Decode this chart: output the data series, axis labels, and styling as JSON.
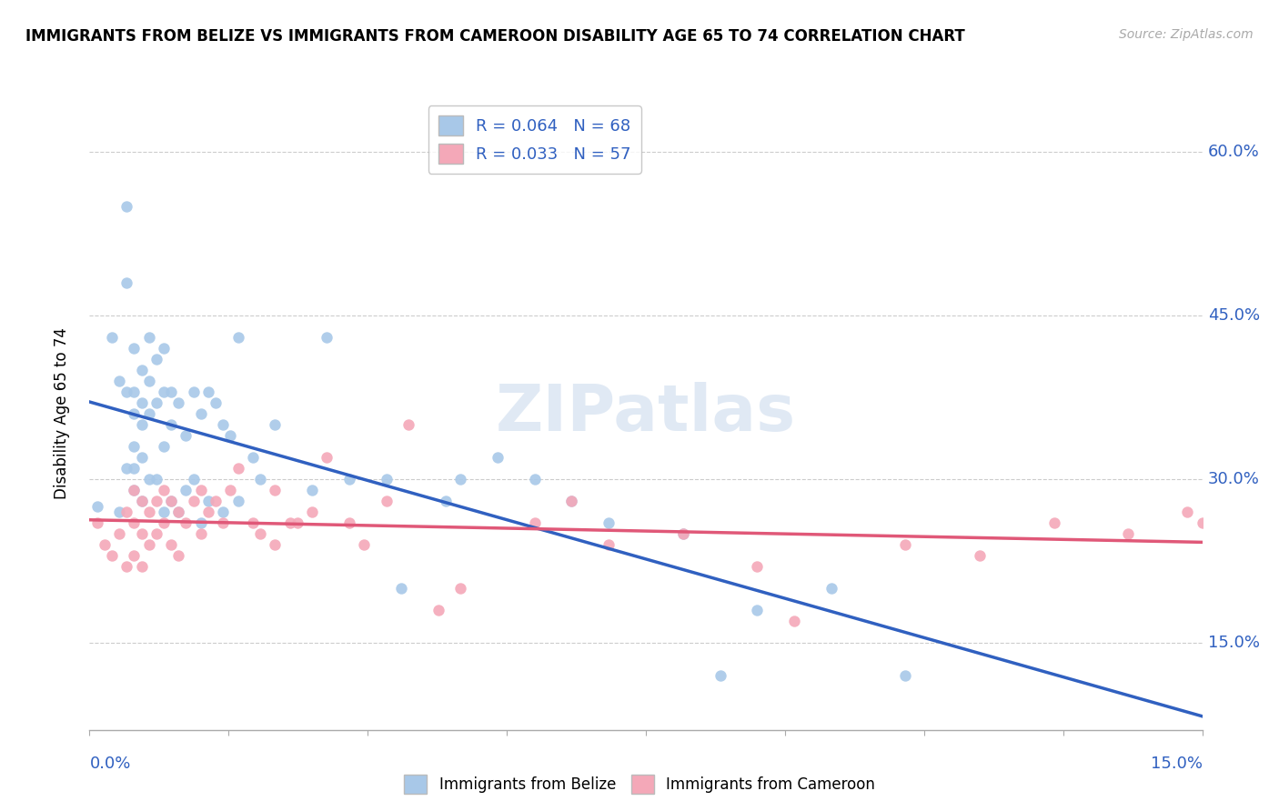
{
  "title": "IMMIGRANTS FROM BELIZE VS IMMIGRANTS FROM CAMEROON DISABILITY AGE 65 TO 74 CORRELATION CHART",
  "source": "Source: ZipAtlas.com",
  "ylabel_label": "Disability Age 65 to 74",
  "ytick_labels": [
    "15.0%",
    "30.0%",
    "45.0%",
    "60.0%"
  ],
  "ytick_values": [
    0.15,
    0.3,
    0.45,
    0.6
  ],
  "xlim": [
    0.0,
    0.15
  ],
  "ylim": [
    0.07,
    0.65
  ],
  "belize_R": 0.064,
  "belize_N": 68,
  "cameroon_R": 0.033,
  "cameroon_N": 57,
  "belize_color": "#a8c8e8",
  "cameroon_color": "#f4a8b8",
  "belize_line_color": "#3060c0",
  "cameroon_line_color": "#e05878",
  "legend_label_belize": "Immigrants from Belize",
  "legend_label_cameroon": "Immigrants from Cameroon",
  "belize_x": [
    0.001,
    0.003,
    0.004,
    0.004,
    0.005,
    0.005,
    0.005,
    0.005,
    0.006,
    0.006,
    0.006,
    0.006,
    0.006,
    0.006,
    0.007,
    0.007,
    0.007,
    0.007,
    0.007,
    0.008,
    0.008,
    0.008,
    0.008,
    0.009,
    0.009,
    0.009,
    0.01,
    0.01,
    0.01,
    0.01,
    0.011,
    0.011,
    0.011,
    0.012,
    0.012,
    0.013,
    0.013,
    0.014,
    0.014,
    0.015,
    0.015,
    0.016,
    0.016,
    0.017,
    0.018,
    0.018,
    0.019,
    0.02,
    0.02,
    0.022,
    0.023,
    0.025,
    0.03,
    0.032,
    0.035,
    0.04,
    0.042,
    0.048,
    0.05,
    0.055,
    0.06,
    0.065,
    0.07,
    0.08,
    0.085,
    0.09,
    0.1,
    0.11
  ],
  "belize_y": [
    0.275,
    0.43,
    0.39,
    0.27,
    0.55,
    0.48,
    0.38,
    0.31,
    0.42,
    0.38,
    0.36,
    0.33,
    0.31,
    0.29,
    0.4,
    0.37,
    0.35,
    0.32,
    0.28,
    0.43,
    0.39,
    0.36,
    0.3,
    0.41,
    0.37,
    0.3,
    0.42,
    0.38,
    0.33,
    0.27,
    0.38,
    0.35,
    0.28,
    0.37,
    0.27,
    0.34,
    0.29,
    0.38,
    0.3,
    0.36,
    0.26,
    0.38,
    0.28,
    0.37,
    0.35,
    0.27,
    0.34,
    0.43,
    0.28,
    0.32,
    0.3,
    0.35,
    0.29,
    0.43,
    0.3,
    0.3,
    0.2,
    0.28,
    0.3,
    0.32,
    0.3,
    0.28,
    0.26,
    0.25,
    0.12,
    0.18,
    0.2,
    0.12
  ],
  "cameroon_x": [
    0.001,
    0.002,
    0.003,
    0.004,
    0.005,
    0.005,
    0.006,
    0.006,
    0.006,
    0.007,
    0.007,
    0.007,
    0.008,
    0.008,
    0.009,
    0.009,
    0.01,
    0.01,
    0.011,
    0.011,
    0.012,
    0.012,
    0.013,
    0.014,
    0.015,
    0.015,
    0.016,
    0.017,
    0.018,
    0.019,
    0.02,
    0.022,
    0.023,
    0.025,
    0.025,
    0.027,
    0.028,
    0.03,
    0.032,
    0.035,
    0.037,
    0.04,
    0.043,
    0.047,
    0.05,
    0.06,
    0.065,
    0.07,
    0.08,
    0.09,
    0.095,
    0.11,
    0.12,
    0.13,
    0.14,
    0.148,
    0.15
  ],
  "cameroon_y": [
    0.26,
    0.24,
    0.23,
    0.25,
    0.27,
    0.22,
    0.29,
    0.26,
    0.23,
    0.28,
    0.25,
    0.22,
    0.27,
    0.24,
    0.28,
    0.25,
    0.29,
    0.26,
    0.28,
    0.24,
    0.27,
    0.23,
    0.26,
    0.28,
    0.29,
    0.25,
    0.27,
    0.28,
    0.26,
    0.29,
    0.31,
    0.26,
    0.25,
    0.29,
    0.24,
    0.26,
    0.26,
    0.27,
    0.32,
    0.26,
    0.24,
    0.28,
    0.35,
    0.18,
    0.2,
    0.26,
    0.28,
    0.24,
    0.25,
    0.22,
    0.17,
    0.24,
    0.23,
    0.26,
    0.25,
    0.27,
    0.26
  ]
}
